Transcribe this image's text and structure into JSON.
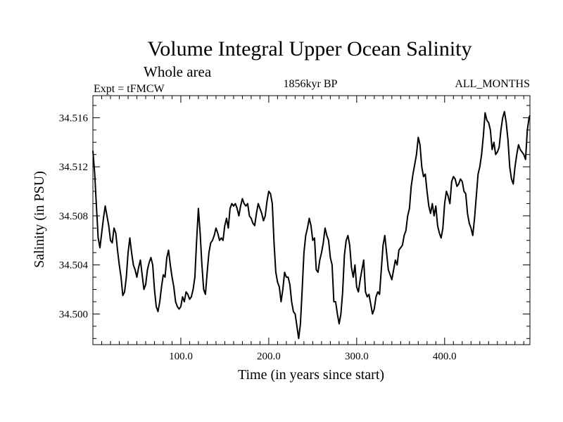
{
  "chart_data": {
    "type": "line",
    "title": "Volume Integral Upper Ocean Salinity",
    "subtitle": "Whole area",
    "left_label": "Expt = tFMCW",
    "center_label": "1856kyr BP",
    "right_label": "ALL_MONTHS",
    "xlabel": "Time (in years since start)",
    "ylabel": "Salinity (in PSU)",
    "xlim": [
      0,
      497
    ],
    "ylim": [
      34.4975,
      34.5178
    ],
    "xticks": [
      100,
      200,
      300,
      400
    ],
    "xtick_labels": [
      "100.0",
      "200.0",
      "300.0",
      "400.0"
    ],
    "yticks": [
      34.5,
      34.504,
      34.508,
      34.512,
      34.516
    ],
    "ytick_labels": [
      "34.500",
      "34.504",
      "34.508",
      "34.512",
      "34.516"
    ],
    "x_minor_step": 10,
    "y_minor_step": 0.001,
    "series": [
      {
        "name": "Salinity",
        "color": "#000000",
        "points": [
          [
            0,
            34.5133
          ],
          [
            2,
            34.5115
          ],
          [
            4,
            34.5088
          ],
          [
            6,
            34.5062
          ],
          [
            8,
            34.5054
          ],
          [
            10,
            34.5066
          ],
          [
            12,
            34.5078
          ],
          [
            14,
            34.5088
          ],
          [
            16,
            34.508
          ],
          [
            18,
            34.5072
          ],
          [
            20,
            34.506
          ],
          [
            22,
            34.5058
          ],
          [
            24,
            34.507
          ],
          [
            26,
            34.5066
          ],
          [
            28,
            34.5052
          ],
          [
            30,
            34.504
          ],
          [
            32,
            34.503
          ],
          [
            34,
            34.5015
          ],
          [
            36,
            34.5018
          ],
          [
            38,
            34.503
          ],
          [
            40,
            34.505
          ],
          [
            42,
            34.5062
          ],
          [
            44,
            34.505
          ],
          [
            46,
            34.504
          ],
          [
            48,
            34.5036
          ],
          [
            50,
            34.503
          ],
          [
            52,
            34.5038
          ],
          [
            54,
            34.5044
          ],
          [
            56,
            34.5032
          ],
          [
            58,
            34.502
          ],
          [
            60,
            34.5024
          ],
          [
            62,
            34.5036
          ],
          [
            64,
            34.5042
          ],
          [
            66,
            34.5046
          ],
          [
            68,
            34.504
          ],
          [
            70,
            34.502
          ],
          [
            72,
            34.5006
          ],
          [
            74,
            34.5002
          ],
          [
            76,
            34.501
          ],
          [
            78,
            34.5022
          ],
          [
            80,
            34.5032
          ],
          [
            82,
            34.503
          ],
          [
            84,
            34.5046
          ],
          [
            86,
            34.5052
          ],
          [
            88,
            34.504
          ],
          [
            90,
            34.503
          ],
          [
            92,
            34.5022
          ],
          [
            94,
            34.501
          ],
          [
            96,
            34.5006
          ],
          [
            98,
            34.5004
          ],
          [
            100,
            34.5006
          ],
          [
            102,
            34.5014
          ],
          [
            104,
            34.501
          ],
          [
            106,
            34.5018
          ],
          [
            108,
            34.5016
          ],
          [
            110,
            34.5012
          ],
          [
            112,
            34.5014
          ],
          [
            114,
            34.502
          ],
          [
            116,
            34.503
          ],
          [
            118,
            34.506
          ],
          [
            120,
            34.5086
          ],
          [
            122,
            34.5066
          ],
          [
            124,
            34.504
          ],
          [
            126,
            34.502
          ],
          [
            128,
            34.5016
          ],
          [
            130,
            34.5034
          ],
          [
            132,
            34.505
          ],
          [
            134,
            34.5058
          ],
          [
            136,
            34.506
          ],
          [
            138,
            34.5064
          ],
          [
            140,
            34.507
          ],
          [
            142,
            34.5066
          ],
          [
            144,
            34.506
          ],
          [
            146,
            34.5062
          ],
          [
            148,
            34.506
          ],
          [
            150,
            34.5072
          ],
          [
            152,
            34.5078
          ],
          [
            154,
            34.507
          ],
          [
            156,
            34.5086
          ],
          [
            158,
            34.509
          ],
          [
            160,
            34.5088
          ],
          [
            162,
            34.509
          ],
          [
            164,
            34.5086
          ],
          [
            166,
            34.508
          ],
          [
            168,
            34.5088
          ],
          [
            170,
            34.5094
          ],
          [
            172,
            34.509
          ],
          [
            174,
            34.5088
          ],
          [
            176,
            34.509
          ],
          [
            178,
            34.508
          ],
          [
            180,
            34.5078
          ],
          [
            182,
            34.5074
          ],
          [
            184,
            34.5072
          ],
          [
            186,
            34.5082
          ],
          [
            188,
            34.509
          ],
          [
            190,
            34.5086
          ],
          [
            192,
            34.5082
          ],
          [
            194,
            34.5076
          ],
          [
            196,
            34.508
          ],
          [
            198,
            34.5092
          ],
          [
            200,
            34.51
          ],
          [
            202,
            34.5098
          ],
          [
            204,
            34.509
          ],
          [
            206,
            34.5058
          ],
          [
            208,
            34.5034
          ],
          [
            210,
            34.5026
          ],
          [
            212,
            34.5022
          ],
          [
            214,
            34.501
          ],
          [
            216,
            34.502
          ],
          [
            218,
            34.5034
          ],
          [
            220,
            34.503
          ],
          [
            222,
            34.503
          ],
          [
            224,
            34.5024
          ],
          [
            226,
            34.501
          ],
          [
            228,
            34.5002
          ],
          [
            230,
            34.5
          ],
          [
            232,
            34.499
          ],
          [
            234,
            34.498
          ],
          [
            236,
            34.4992
          ],
          [
            238,
            34.502
          ],
          [
            240,
            34.505
          ],
          [
            242,
            34.5064
          ],
          [
            244,
            34.507
          ],
          [
            246,
            34.5078
          ],
          [
            248,
            34.5072
          ],
          [
            250,
            34.506
          ],
          [
            252,
            34.5062
          ],
          [
            254,
            34.5036
          ],
          [
            256,
            34.5034
          ],
          [
            258,
            34.5044
          ],
          [
            260,
            34.505
          ],
          [
            262,
            34.5058
          ],
          [
            264,
            34.507
          ],
          [
            266,
            34.5064
          ],
          [
            268,
            34.506
          ],
          [
            270,
            34.5046
          ],
          [
            272,
            34.504
          ],
          [
            274,
            34.501
          ],
          [
            276,
            34.501
          ],
          [
            278,
            34.5
          ],
          [
            280,
            34.4992
          ],
          [
            282,
            34.5
          ],
          [
            284,
            34.5018
          ],
          [
            286,
            34.5048
          ],
          [
            288,
            34.506
          ],
          [
            290,
            34.5064
          ],
          [
            292,
            34.5056
          ],
          [
            294,
            34.5038
          ],
          [
            296,
            34.503
          ],
          [
            298,
            34.504
          ],
          [
            300,
            34.5022
          ],
          [
            302,
            34.5018
          ],
          [
            304,
            34.5028
          ],
          [
            306,
            34.5036
          ],
          [
            308,
            34.5044
          ],
          [
            310,
            34.5018
          ],
          [
            312,
            34.5014
          ],
          [
            314,
            34.5016
          ],
          [
            316,
            34.5008
          ],
          [
            318,
            34.5
          ],
          [
            320,
            34.5004
          ],
          [
            322,
            34.5014
          ],
          [
            324,
            34.5018
          ],
          [
            326,
            34.5016
          ],
          [
            328,
            34.5036
          ],
          [
            330,
            34.5056
          ],
          [
            332,
            34.5064
          ],
          [
            334,
            34.505
          ],
          [
            336,
            34.5036
          ],
          [
            338,
            34.5032
          ],
          [
            340,
            34.5028
          ],
          [
            342,
            34.5036
          ],
          [
            344,
            34.5044
          ],
          [
            346,
            34.504
          ],
          [
            348,
            34.5052
          ],
          [
            350,
            34.5054
          ],
          [
            352,
            34.5056
          ],
          [
            354,
            34.5064
          ],
          [
            356,
            34.5068
          ],
          [
            358,
            34.508
          ],
          [
            360,
            34.5086
          ],
          [
            362,
            34.5104
          ],
          [
            364,
            34.5114
          ],
          [
            366,
            34.5122
          ],
          [
            368,
            34.513
          ],
          [
            370,
            34.5144
          ],
          [
            372,
            34.5138
          ],
          [
            374,
            34.512
          ],
          [
            376,
            34.5112
          ],
          [
            378,
            34.5114
          ],
          [
            380,
            34.51
          ],
          [
            382,
            34.5088
          ],
          [
            384,
            34.5082
          ],
          [
            386,
            34.509
          ],
          [
            388,
            34.508
          ],
          [
            390,
            34.5088
          ],
          [
            392,
            34.5072
          ],
          [
            394,
            34.5066
          ],
          [
            396,
            34.5062
          ],
          [
            398,
            34.507
          ],
          [
            400,
            34.509
          ],
          [
            402,
            34.51
          ],
          [
            404,
            34.5096
          ],
          [
            406,
            34.509
          ],
          [
            408,
            34.5108
          ],
          [
            410,
            34.5112
          ],
          [
            412,
            34.511
          ],
          [
            414,
            34.5104
          ],
          [
            416,
            34.5106
          ],
          [
            418,
            34.511
          ],
          [
            420,
            34.5108
          ],
          [
            422,
            34.51
          ],
          [
            424,
            34.5098
          ],
          [
            426,
            34.5082
          ],
          [
            428,
            34.5074
          ],
          [
            430,
            34.507
          ],
          [
            432,
            34.5064
          ],
          [
            434,
            34.5078
          ],
          [
            436,
            34.5096
          ],
          [
            438,
            34.5114
          ],
          [
            440,
            34.512
          ],
          [
            442,
            34.513
          ],
          [
            444,
            34.5145
          ],
          [
            446,
            34.5164
          ],
          [
            448,
            34.5158
          ],
          [
            450,
            34.5156
          ],
          [
            452,
            34.515
          ],
          [
            454,
            34.5134
          ],
          [
            456,
            34.514
          ],
          [
            458,
            34.513
          ],
          [
            460,
            34.5132
          ],
          [
            462,
            34.5136
          ],
          [
            464,
            34.515
          ],
          [
            466,
            34.516
          ],
          [
            468,
            34.5165
          ],
          [
            470,
            34.5156
          ],
          [
            472,
            34.5142
          ],
          [
            474,
            34.512
          ],
          [
            476,
            34.511
          ],
          [
            478,
            34.5106
          ],
          [
            480,
            34.512
          ],
          [
            482,
            34.513
          ],
          [
            484,
            34.5138
          ],
          [
            486,
            34.5134
          ],
          [
            488,
            34.5132
          ],
          [
            490,
            34.513
          ],
          [
            492,
            34.5126
          ],
          [
            494,
            34.515
          ],
          [
            496,
            34.516
          ],
          [
            497,
            34.5162
          ]
        ]
      }
    ]
  }
}
